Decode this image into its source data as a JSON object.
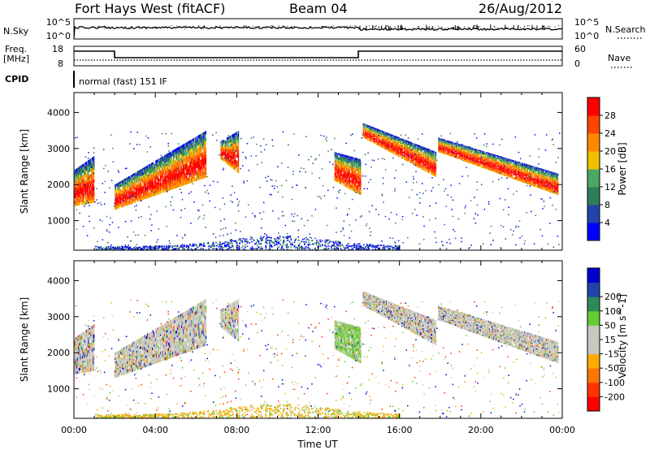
{
  "header": {
    "station": "Fort Hays West (fitACF)",
    "beam": "Beam 04",
    "date": "26/Aug/2012"
  },
  "strip_panels": {
    "nsky_label": "N.Sky",
    "nsky_ticks": [
      "10^5",
      "10^0"
    ],
    "nsearch_label": "N.Search",
    "nsearch_ticks": [
      "10^5",
      "10^0"
    ],
    "freq_label_top": "Freq.",
    "freq_label_unit": "[MHz]",
    "freq_ticks": [
      "18",
      "8"
    ],
    "nave_label": "Nave",
    "nave_ticks": [
      "60",
      "0"
    ],
    "cpid_label": "CPID",
    "cpid_text": "normal (fast) 151 IF"
  },
  "chart_data": [
    {
      "type": "heatmap",
      "id": "power",
      "ylabel": "Slant Range [km]",
      "xlabel": "",
      "ylim": [
        180,
        4550
      ],
      "yticks": [
        1000,
        2000,
        3000,
        4000
      ],
      "xlim": [
        0,
        24
      ],
      "colorbar_label": "Power [dB]",
      "colorbar_ticks": [
        "4",
        "8",
        "12",
        "16",
        "20",
        "24",
        "28"
      ],
      "colors": [
        "#0000ff",
        "#2244aa",
        "#2e7d5b",
        "#4ba864",
        "#f0c000",
        "#ff8800",
        "#ff4500",
        "#ff0000"
      ],
      "regions": [
        {
          "t": [
            0.0,
            1.0
          ],
          "r_low": [
            1400,
            1500
          ],
          "r_high": [
            2400,
            2800
          ]
        },
        {
          "t": [
            2.0,
            6.5
          ],
          "r_low": [
            1300,
            2200
          ],
          "r_high": [
            2000,
            3500
          ]
        },
        {
          "t": [
            7.2,
            8.1
          ],
          "r_low": [
            2700,
            2300
          ],
          "r_high": [
            3200,
            3500
          ]
        },
        {
          "t": [
            12.8,
            14.1
          ],
          "r_low": [
            2100,
            1700
          ],
          "r_high": [
            2900,
            2700
          ]
        },
        {
          "t": [
            14.2,
            17.8
          ],
          "r_low": [
            3300,
            2200
          ],
          "r_high": [
            3700,
            2900
          ]
        },
        {
          "t": [
            17.9,
            23.8
          ],
          "r_low": [
            2900,
            1700
          ],
          "r_high": [
            3300,
            2300
          ]
        }
      ]
    },
    {
      "type": "heatmap",
      "id": "velocity",
      "ylabel": "Slant Range [km]",
      "xlabel": "Time UT",
      "ylim": [
        180,
        4550
      ],
      "yticks": [
        1000,
        2000,
        3000,
        4000
      ],
      "xlim": [
        0,
        24
      ],
      "xticks": [
        "00:00",
        "04:00",
        "08:00",
        "12:00",
        "16:00",
        "20:00",
        "00:00"
      ],
      "colorbar_label": "Velocity [m s^-1]",
      "colorbar_ticks": [
        "200",
        "100",
        "50",
        "15",
        "-15",
        "-50",
        "-100",
        "-200"
      ],
      "colors": [
        "#0000cc",
        "#2244aa",
        "#2e8b57",
        "#66cc33",
        "#c8c8c0",
        "#c8c8c0",
        "#ffaa00",
        "#ff7700",
        "#ff3300",
        "#ff0000"
      ]
    }
  ],
  "colors": {
    "ground_scatter": "#c8c8c0",
    "axis": "#000000"
  }
}
